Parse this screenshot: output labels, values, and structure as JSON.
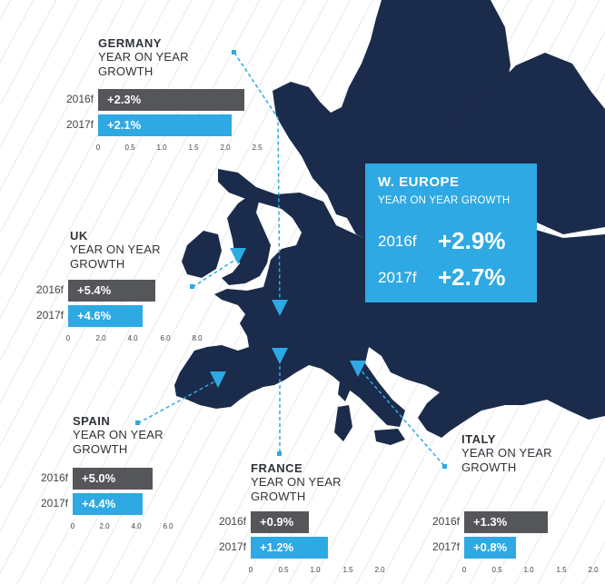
{
  "colors": {
    "map": "#1b2b4b",
    "accent": "#2ea9e3",
    "bar_2016": "#555659",
    "bar_2017": "#2ea9e3"
  },
  "europe": {
    "title": "W. EUROPE",
    "subtitle": "YEAR ON YEAR GROWTH",
    "rows": [
      {
        "year": "2016f",
        "value": "+2.9%"
      },
      {
        "year": "2017f",
        "value": "+2.7%"
      }
    ]
  },
  "chart_data": [
    {
      "type": "bar",
      "title": "GERMANY",
      "subtitle": "YEAR ON YEAR GROWTH",
      "categories": [
        "2016f",
        "2017f"
      ],
      "values": [
        2.3,
        2.1
      ],
      "value_labels": [
        "+2.3%",
        "+2.1%"
      ],
      "ticks": [
        "0",
        "0.5",
        "1.0",
        "1.5",
        "2.0",
        "2.5"
      ],
      "xlim": [
        0,
        2.5
      ]
    },
    {
      "type": "bar",
      "title": "UK",
      "subtitle": "YEAR ON YEAR GROWTH",
      "categories": [
        "2016f",
        "2017f"
      ],
      "values": [
        5.4,
        4.6
      ],
      "value_labels": [
        "+5.4%",
        "+4.6%"
      ],
      "ticks": [
        "0",
        "2.0",
        "4.0",
        "6.0",
        "8.0"
      ],
      "xlim": [
        0,
        8
      ]
    },
    {
      "type": "bar",
      "title": "SPAIN",
      "subtitle": "YEAR ON YEAR GROWTH",
      "categories": [
        "2016f",
        "2017f"
      ],
      "values": [
        5.0,
        4.4
      ],
      "value_labels": [
        "+5.0%",
        "+4.4%"
      ],
      "ticks": [
        "0",
        "2.0",
        "4.0",
        "6.0"
      ],
      "xlim": [
        0,
        6
      ]
    },
    {
      "type": "bar",
      "title": "FRANCE",
      "subtitle": "YEAR ON YEAR GROWTH",
      "categories": [
        "2016f",
        "2017f"
      ],
      "values": [
        0.9,
        1.2
      ],
      "value_labels": [
        "+0.9%",
        "+1.2%"
      ],
      "ticks": [
        "0",
        "0.5",
        "1.0",
        "1.5",
        "2.0"
      ],
      "xlim": [
        0,
        2
      ]
    },
    {
      "type": "bar",
      "title": "ITALY",
      "subtitle": "YEAR ON YEAR GROWTH",
      "categories": [
        "2016f",
        "2017f"
      ],
      "values": [
        1.3,
        0.8
      ],
      "value_labels": [
        "+1.3%",
        "+0.8%"
      ],
      "ticks": [
        "0",
        "0.5",
        "1.0",
        "1.5",
        "2.0"
      ],
      "xlim": [
        0,
        2
      ]
    }
  ]
}
